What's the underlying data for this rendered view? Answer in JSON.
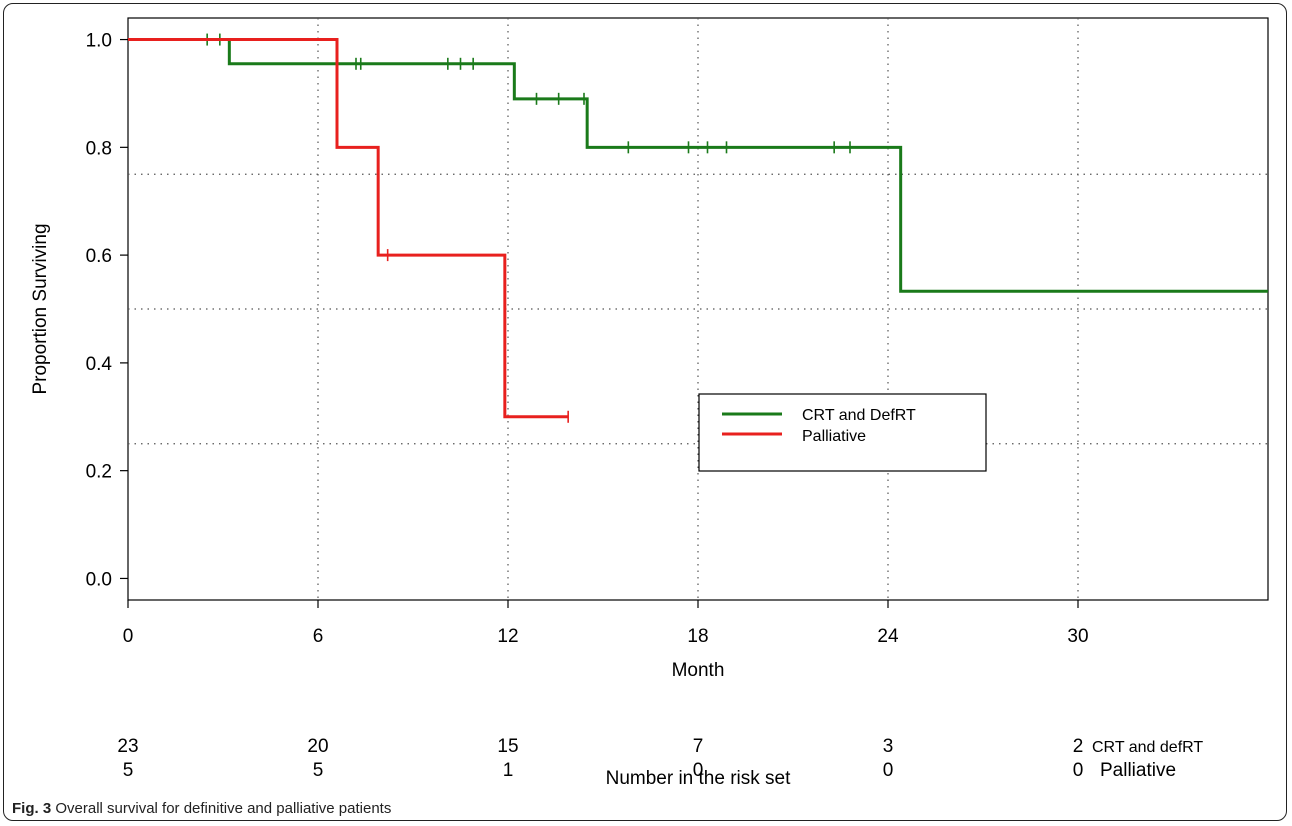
{
  "caption": {
    "label": "Fig. 3",
    "text": "Overall survival for definitive and palliative patients"
  },
  "chart_data": {
    "type": "line",
    "step": true,
    "xlabel": "Month",
    "ylabel": "Proportion Surviving",
    "xlim": [
      0,
      36
    ],
    "ylim": [
      -0.04,
      1.04
    ],
    "xticks": [
      0,
      6,
      12,
      18,
      24,
      30
    ],
    "xtick_labels": [
      "0",
      "6",
      "12",
      "18",
      "24",
      "30"
    ],
    "yticks": [
      0.0,
      0.2,
      0.4,
      0.6,
      0.8,
      1.0
    ],
    "ytick_labels": [
      "0.0",
      "0.2",
      "0.4",
      "0.6",
      "0.8",
      "1.0"
    ],
    "reference_lines_y": [
      0.25,
      0.5,
      0.75
    ],
    "grid": "dotted",
    "legend": {
      "placement": "center-right",
      "entries": [
        "CRT and DefRT",
        "Palliative"
      ]
    },
    "series": [
      {
        "name": "CRT and DefRT",
        "color": "#1a7a1a",
        "x": [
          0,
          3.2,
          3.2,
          12.2,
          12.2,
          14.5,
          14.5,
          24.4,
          24.4,
          36
        ],
        "y": [
          1.0,
          1.0,
          0.955,
          0.955,
          0.89,
          0.89,
          0.8,
          0.8,
          0.533,
          0.533
        ],
        "censored": [
          {
            "x": 2.5,
            "y": 1.0
          },
          {
            "x": 2.9,
            "y": 1.0
          },
          {
            "x": 7.2,
            "y": 0.955
          },
          {
            "x": 7.35,
            "y": 0.955
          },
          {
            "x": 10.1,
            "y": 0.955
          },
          {
            "x": 10.5,
            "y": 0.955
          },
          {
            "x": 10.9,
            "y": 0.955
          },
          {
            "x": 12.9,
            "y": 0.89
          },
          {
            "x": 13.6,
            "y": 0.89
          },
          {
            "x": 14.4,
            "y": 0.89
          },
          {
            "x": 15.8,
            "y": 0.8
          },
          {
            "x": 17.7,
            "y": 0.8
          },
          {
            "x": 18.3,
            "y": 0.8
          },
          {
            "x": 18.9,
            "y": 0.8
          },
          {
            "x": 22.3,
            "y": 0.8
          },
          {
            "x": 22.8,
            "y": 0.8
          }
        ]
      },
      {
        "name": "Palliative",
        "color": "#e8201e",
        "x": [
          0,
          6.6,
          6.6,
          7.9,
          7.9,
          11.9,
          11.9,
          13.9
        ],
        "y": [
          1.0,
          1.0,
          0.8,
          0.8,
          0.6,
          0.6,
          0.3,
          0.3
        ],
        "censored": [
          {
            "x": 8.2,
            "y": 0.6
          },
          {
            "x": 13.9,
            "y": 0.3
          }
        ]
      }
    ],
    "risk_table": {
      "title": "Number in the risk set",
      "times": [
        0,
        6,
        12,
        18,
        24,
        30
      ],
      "rows": [
        {
          "label": "CRT and defRT",
          "counts": [
            "23",
            "20",
            "15",
            "7",
            "3",
            "2"
          ]
        },
        {
          "label": "Palliative",
          "counts": [
            "5",
            "5",
            "1",
            "0",
            "0",
            "0"
          ]
        }
      ]
    }
  }
}
